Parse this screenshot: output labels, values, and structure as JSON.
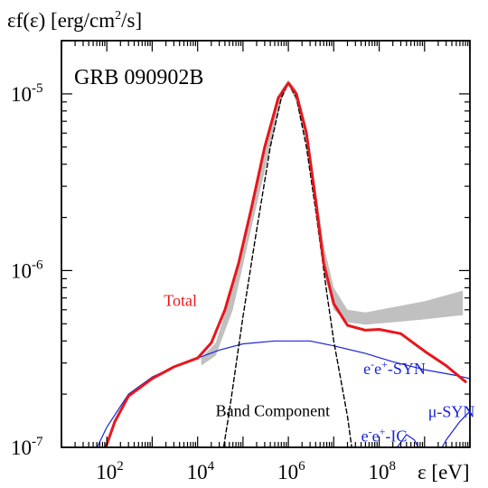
{
  "chart_data": {
    "type": "line",
    "title": "GRB 090902B",
    "ylabel": {
      "prefix": "εf(ε) [erg/cm",
      "sup": "2",
      "suffix": "/s]"
    },
    "xlabel": "ε [eV]",
    "x_scale": "log",
    "y_scale": "log",
    "xlim": [
      10,
      10000000000.0
    ],
    "ylim": [
      1e-07,
      2e-05
    ],
    "x_ticks": [
      {
        "value": 100,
        "base": "10",
        "exp": "2"
      },
      {
        "value": 10000,
        "base": "10",
        "exp": "4"
      },
      {
        "value": 1000000,
        "base": "10",
        "exp": "6"
      },
      {
        "value": 100000000,
        "base": "10",
        "exp": "8"
      }
    ],
    "y_ticks": [
      {
        "value": 1e-07,
        "base": "10",
        "exp": "-7"
      },
      {
        "value": 1e-06,
        "base": "10",
        "exp": "-6"
      },
      {
        "value": 1e-05,
        "base": "10",
        "exp": "-5"
      }
    ],
    "series": [
      {
        "name": "Total",
        "color": "#e8161b",
        "style": "solid-thick",
        "points": [
          [
            70,
            8e-08
          ],
          [
            150,
            1.4e-07
          ],
          [
            300,
            1.95e-07
          ],
          [
            1000,
            2.45e-07
          ],
          [
            3000,
            2.85e-07
          ],
          [
            10000,
            3.2e-07
          ],
          [
            20000,
            3.9e-07
          ],
          [
            40000,
            6e-07
          ],
          [
            80000,
            1.1e-06
          ],
          [
            150000,
            2.2e-06
          ],
          [
            300000,
            5e-06
          ],
          [
            600000,
            9.5e-06
          ],
          [
            1000000,
            1.15e-05
          ],
          [
            1500000,
            1e-05
          ],
          [
            2500000,
            6e-06
          ],
          [
            4000000,
            2.5e-06
          ],
          [
            6000000,
            1.1e-06
          ],
          [
            10000000,
            6.5e-07
          ],
          [
            20000000,
            4.9e-07
          ],
          [
            50000000,
            4.6e-07
          ],
          [
            100000000,
            4.65e-07
          ],
          [
            300000000,
            4.4e-07
          ],
          [
            1000000000,
            3.5e-07
          ],
          [
            3000000000,
            2.9e-07
          ],
          [
            8000000000,
            2.35e-07
          ]
        ]
      },
      {
        "name": "Band Component",
        "color": "#000000",
        "style": "dashed",
        "points": [
          [
            30000,
            7e-08
          ],
          [
            50000,
            1.6e-07
          ],
          [
            100000,
            5.5e-07
          ],
          [
            200000,
            1.7e-06
          ],
          [
            400000,
            5e-06
          ],
          [
            700000,
            9.5e-06
          ],
          [
            1000000,
            1.15e-05
          ],
          [
            1500000,
            9.5e-06
          ],
          [
            2500000,
            5e-06
          ],
          [
            4000000,
            2.2e-06
          ],
          [
            7000000,
            7.5e-07
          ],
          [
            10000000,
            4e-07
          ],
          [
            20000000,
            1.5e-07
          ],
          [
            30000000,
            7e-08
          ]
        ]
      },
      {
        "name": "e⁻e⁺-SYN",
        "color": "#1a24d6",
        "style": "solid",
        "points": [
          [
            40,
            8e-08
          ],
          [
            100,
            1.3e-07
          ],
          [
            300,
            2e-07
          ],
          [
            1000,
            2.5e-07
          ],
          [
            3000,
            2.85e-07
          ],
          [
            10000,
            3.2e-07
          ],
          [
            30000,
            3.55e-07
          ],
          [
            100000,
            3.85e-07
          ],
          [
            500000,
            4e-07
          ],
          [
            3000000,
            4e-07
          ],
          [
            10000000,
            3.75e-07
          ],
          [
            50000000,
            3.4e-07
          ],
          [
            200000000,
            3.05e-07
          ],
          [
            1000000000,
            2.75e-07
          ],
          [
            5000000000,
            2.55e-07
          ],
          [
            10000000000,
            2.45e-07
          ]
        ]
      },
      {
        "name": "e⁻e⁺-IC",
        "color": "#1a24d6",
        "style": "solid",
        "points": [
          [
            150000000,
            8e-08
          ],
          [
            250000000,
            1e-07
          ],
          [
            400000000,
            1.18e-07
          ],
          [
            600000000,
            1.1e-07
          ],
          [
            900000000,
            9e-08
          ],
          [
            1200000000,
            8e-08
          ]
        ]
      },
      {
        "name": "μ-SYN",
        "color": "#1a24d6",
        "style": "solid",
        "points": [
          [
            1500000000,
            8e-08
          ],
          [
            3000000000,
            1.1e-07
          ],
          [
            6000000000,
            1.4e-07
          ],
          [
            10000000000,
            1.6e-07
          ]
        ]
      }
    ],
    "observed_band": {
      "color": "#c0c0c0",
      "upper": [
        [
          12000,
          3.2e-07
        ],
        [
          25000,
          3.9e-07
        ],
        [
          60000,
          8e-07
        ],
        [
          150000,
          2.2e-06
        ],
        [
          400000,
          6.6e-06
        ],
        [
          700000,
          1.05e-05
        ],
        [
          1000000,
          1.2e-05
        ],
        [
          1500000,
          1.05e-05
        ],
        [
          2500000,
          6.5e-06
        ],
        [
          4000000,
          2.9e-06
        ],
        [
          6000000,
          1.4e-06
        ],
        [
          10000000,
          8e-07
        ],
        [
          20000000,
          6e-07
        ],
        [
          50000000,
          5.8e-07
        ],
        [
          200000000,
          6.2e-07
        ],
        [
          1000000000,
          6.7e-07
        ],
        [
          7000000000,
          7.7e-07
        ]
      ],
      "lower": [
        [
          7000000000,
          5.6e-07
        ],
        [
          1000000000,
          5.3e-07
        ],
        [
          200000000,
          5.1e-07
        ],
        [
          50000000,
          4.95e-07
        ],
        [
          20000000,
          5.1e-07
        ],
        [
          10000000,
          6e-07
        ],
        [
          6000000,
          1e-06
        ],
        [
          4000000,
          2.2e-06
        ],
        [
          2500000,
          5.3e-06
        ],
        [
          1500000,
          9e-06
        ],
        [
          1000000,
          1.12e-05
        ],
        [
          700000,
          9.2e-06
        ],
        [
          400000,
          5e-06
        ],
        [
          150000,
          1.7e-06
        ],
        [
          60000,
          6e-07
        ],
        [
          25000,
          3.3e-07
        ],
        [
          12000,
          2.9e-07
        ]
      ]
    },
    "annotations": [
      {
        "key": "total",
        "text": "Total",
        "color": "#e8161b",
        "x": 1800,
        "y": 6.3e-07
      },
      {
        "key": "band",
        "text": "Band Component",
        "color": "#000000",
        "x": 25000,
        "y": 1.5e-07
      },
      {
        "key": "eesyn",
        "base": "e",
        "sup1": "-",
        "mid": "e",
        "sup2": "+",
        "suffix": "-SYN",
        "color": "#1a24d6",
        "x": 45000000,
        "y": 2.6e-07
      },
      {
        "key": "eeic",
        "base": "e",
        "sup1": "-",
        "mid": "e",
        "sup2": "+",
        "suffix": "-IC",
        "color": "#1a24d6",
        "x": 40000000,
        "y": 1.08e-07
      },
      {
        "key": "musyn",
        "text": "μ-SYN",
        "color": "#1a24d6",
        "x": 1200000000,
        "y": 1.48e-07
      }
    ]
  }
}
